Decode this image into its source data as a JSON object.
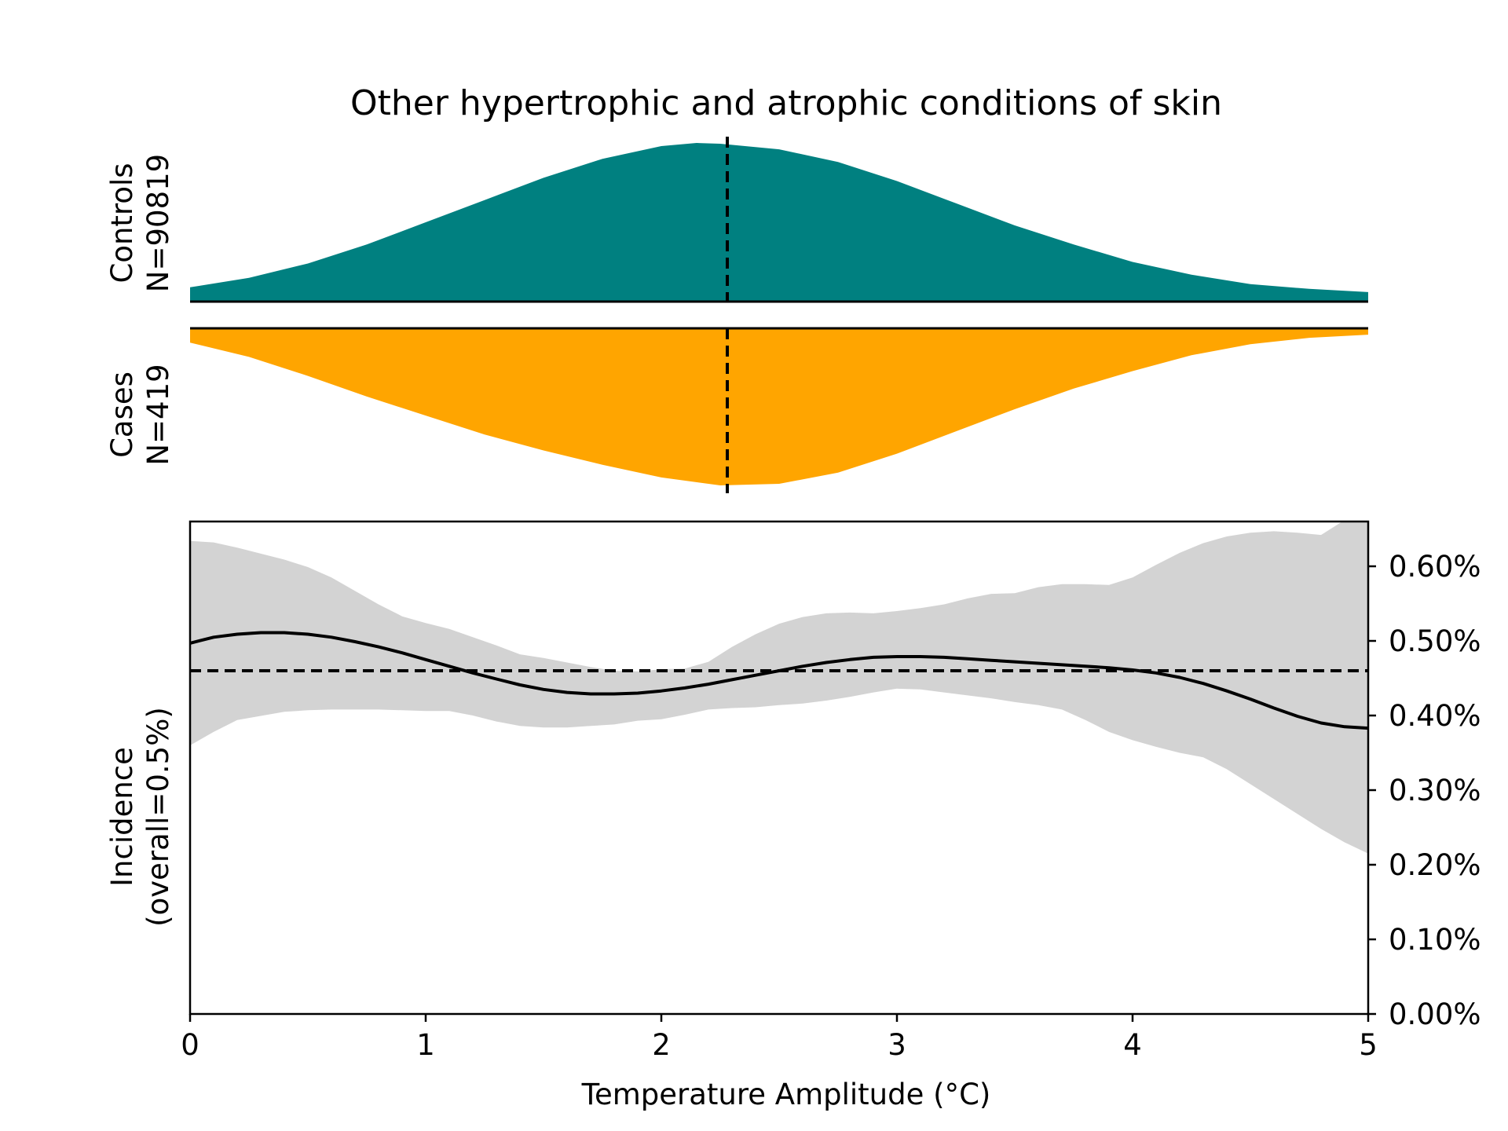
{
  "chart_data": {
    "type": "area",
    "title": "Other hypertrophic and atrophic conditions of skin",
    "xlabel": "Temperature Amplitude (°C)",
    "xlim": [
      0,
      5
    ],
    "x_ticks": [
      "0",
      "1",
      "2",
      "3",
      "4",
      "5"
    ],
    "x_tick_values": [
      0,
      1,
      2,
      3,
      4,
      5
    ],
    "colors": {
      "controls": "#008080",
      "cases": "#FFA500",
      "ci_band": "#D3D3D3",
      "line": "#000000"
    },
    "distributions": {
      "controls": {
        "label_line1": "Controls",
        "label_line2": "N=90819",
        "color": "#008080",
        "median": 2.28,
        "x": [
          0,
          0.25,
          0.5,
          0.75,
          1.0,
          1.25,
          1.5,
          1.75,
          2.0,
          2.15,
          2.25,
          2.5,
          2.75,
          3.0,
          3.25,
          3.5,
          3.75,
          4.0,
          4.25,
          4.5,
          4.75,
          5.0
        ],
        "density": [
          0.09,
          0.15,
          0.24,
          0.36,
          0.5,
          0.64,
          0.78,
          0.9,
          0.98,
          1.0,
          0.995,
          0.96,
          0.88,
          0.76,
          0.62,
          0.48,
          0.36,
          0.25,
          0.17,
          0.11,
          0.08,
          0.06
        ]
      },
      "cases": {
        "label_line1": "Cases",
        "label_line2": "N=419",
        "color": "#FFA500",
        "median": 2.28,
        "x": [
          0,
          0.25,
          0.5,
          0.75,
          1.0,
          1.25,
          1.5,
          1.75,
          2.0,
          2.25,
          2.5,
          2.75,
          3.0,
          3.25,
          3.5,
          3.75,
          4.0,
          4.25,
          4.5,
          4.75,
          5.0
        ],
        "density": [
          0.09,
          0.18,
          0.3,
          0.43,
          0.55,
          0.67,
          0.77,
          0.86,
          0.94,
          0.99,
          0.98,
          0.91,
          0.79,
          0.65,
          0.51,
          0.38,
          0.27,
          0.17,
          0.1,
          0.06,
          0.04
        ]
      }
    },
    "incidence": {
      "ylabel_line1": "Incidence",
      "ylabel_line2": "(overall=0.5%)",
      "ylim": [
        0,
        0.0066
      ],
      "y_ticks": [
        "0.00%",
        "0.10%",
        "0.20%",
        "0.30%",
        "0.40%",
        "0.50%",
        "0.60%"
      ],
      "y_tick_values": [
        0,
        0.001,
        0.002,
        0.003,
        0.004,
        0.005,
        0.006
      ],
      "overall_rate": 0.0046,
      "x": [
        0,
        0.1,
        0.2,
        0.3,
        0.4,
        0.5,
        0.6,
        0.7,
        0.8,
        0.9,
        1.0,
        1.1,
        1.2,
        1.3,
        1.4,
        1.5,
        1.6,
        1.7,
        1.8,
        1.9,
        2.0,
        2.1,
        2.2,
        2.3,
        2.4,
        2.5,
        2.6,
        2.7,
        2.8,
        2.9,
        3.0,
        3.1,
        3.2,
        3.3,
        3.4,
        3.5,
        3.6,
        3.7,
        3.8,
        3.9,
        4.0,
        4.1,
        4.2,
        4.3,
        4.4,
        4.5,
        4.6,
        4.7,
        4.8,
        4.9,
        5.0
      ],
      "rate": [
        0.00497,
        0.00505,
        0.00509,
        0.00511,
        0.00511,
        0.00509,
        0.00505,
        0.00499,
        0.00492,
        0.00484,
        0.00475,
        0.00466,
        0.00457,
        0.00449,
        0.00441,
        0.00435,
        0.00431,
        0.00429,
        0.00429,
        0.0043,
        0.00433,
        0.00437,
        0.00442,
        0.00448,
        0.00454,
        0.0046,
        0.00466,
        0.00471,
        0.00475,
        0.00478,
        0.00479,
        0.00479,
        0.00478,
        0.00476,
        0.00474,
        0.00472,
        0.0047,
        0.00468,
        0.00466,
        0.00464,
        0.00461,
        0.00457,
        0.00451,
        0.00443,
        0.00433,
        0.00422,
        0.0041,
        0.00399,
        0.0039,
        0.00385,
        0.00383
      ],
      "ci_x": [
        0,
        0.1,
        0.2,
        0.4,
        0.5,
        0.6,
        0.8,
        0.9,
        1.0,
        1.1,
        1.2,
        1.3,
        1.4,
        1.5,
        1.6,
        1.7,
        1.8,
        1.9,
        2.0,
        2.1,
        2.2,
        2.3,
        2.4,
        2.5,
        2.6,
        2.7,
        2.8,
        2.9,
        3.0,
        3.1,
        3.2,
        3.3,
        3.4,
        3.5,
        3.6,
        3.7,
        3.8,
        3.9,
        4.0,
        4.1,
        4.2,
        4.3,
        4.4,
        4.5,
        4.6,
        4.7,
        4.8,
        4.9,
        5.0
      ],
      "ci_upper": [
        0.00634,
        0.00632,
        0.00625,
        0.00609,
        0.00599,
        0.00585,
        0.00549,
        0.00533,
        0.00524,
        0.00516,
        0.00505,
        0.00494,
        0.00482,
        0.00477,
        0.00471,
        0.00465,
        0.0046,
        0.00459,
        0.00462,
        0.00463,
        0.00472,
        0.00492,
        0.00509,
        0.00523,
        0.00532,
        0.00537,
        0.00538,
        0.00537,
        0.0054,
        0.00544,
        0.00549,
        0.00557,
        0.00563,
        0.00564,
        0.00572,
        0.00576,
        0.00576,
        0.00575,
        0.00585,
        0.00602,
        0.00618,
        0.00631,
        0.0064,
        0.00645,
        0.00647,
        0.00645,
        0.00642,
        0.00662,
        0.0068
      ],
      "ci_lower": [
        0.0036,
        0.00378,
        0.00394,
        0.00405,
        0.00407,
        0.00408,
        0.00408,
        0.00407,
        0.00406,
        0.00406,
        0.004,
        0.00392,
        0.00386,
        0.00384,
        0.00384,
        0.00386,
        0.00388,
        0.00393,
        0.00395,
        0.00401,
        0.00408,
        0.0041,
        0.00411,
        0.00414,
        0.00416,
        0.0042,
        0.00425,
        0.00431,
        0.00436,
        0.00435,
        0.00431,
        0.00427,
        0.00423,
        0.00418,
        0.00414,
        0.00408,
        0.00394,
        0.00378,
        0.00367,
        0.00358,
        0.0035,
        0.00344,
        0.00328,
        0.00308,
        0.00288,
        0.00268,
        0.00248,
        0.0023,
        0.00215
      ]
    }
  }
}
